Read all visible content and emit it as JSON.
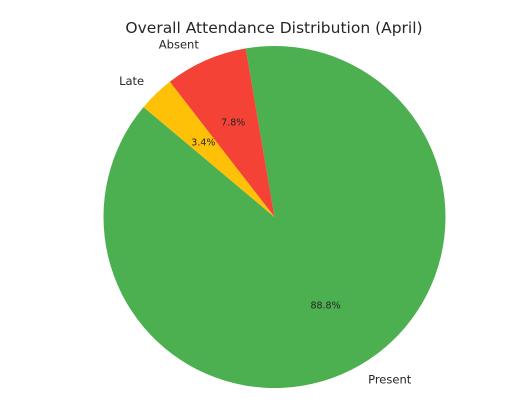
{
  "chart_data": {
    "type": "pie",
    "title": "Overall Attendance Distribution (April)",
    "slices": [
      {
        "label": "Present",
        "value": 88.8,
        "pct_label": "88.8%",
        "color": "#4caf50"
      },
      {
        "label": "Absent",
        "value": 7.8,
        "pct_label": "7.8%",
        "color": "#f44336"
      },
      {
        "label": "Late",
        "value": 3.4,
        "pct_label": "3.4%",
        "color": "#ffc107"
      }
    ],
    "start_angle_deg": 140,
    "direction": "counterclockwise",
    "legend": "none"
  }
}
